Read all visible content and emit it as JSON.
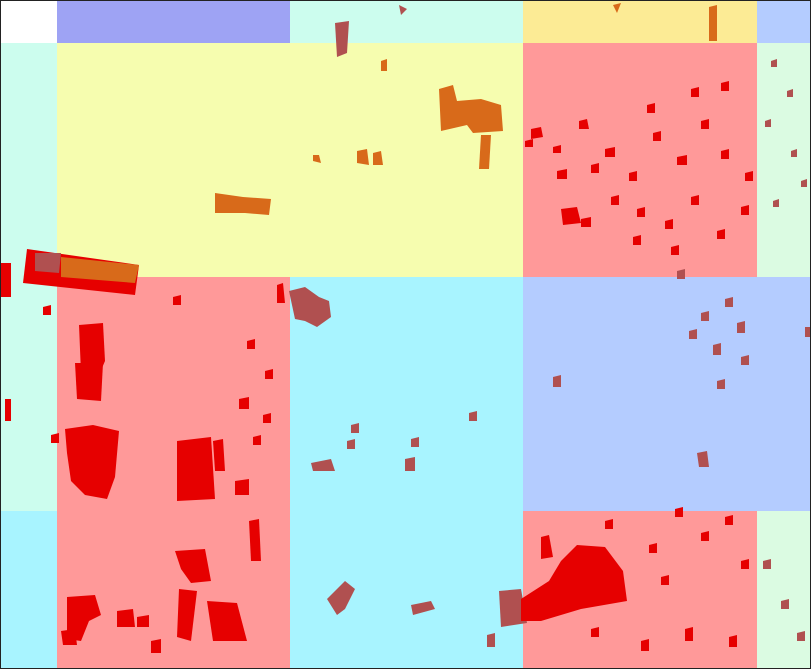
{
  "map": {
    "colors": {
      "red": "#ff9999",
      "yellow": "#f6fdaf",
      "cyan": "#a8f4ff",
      "blue": "#b4ccff",
      "mint": "#ccfdee",
      "lilac": "#9ea3f4",
      "butter": "#fceb95",
      "pale_green": "#dbfbe2",
      "white": "#ffffff",
      "feature_red": "#e60000",
      "feature_orange": "#d86a1a",
      "feature_brown": "#b05050"
    },
    "tile_classes": [
      [
        "white",
        "lilac",
        "mint",
        "butter",
        "blue"
      ],
      [
        "mint",
        "yellow",
        "yellow",
        "red",
        "pale_green"
      ],
      [
        "mint",
        "red",
        "cyan",
        "blue",
        "blue"
      ],
      [
        "cyan",
        "red",
        "cyan",
        "red",
        "pale_green"
      ]
    ]
  }
}
